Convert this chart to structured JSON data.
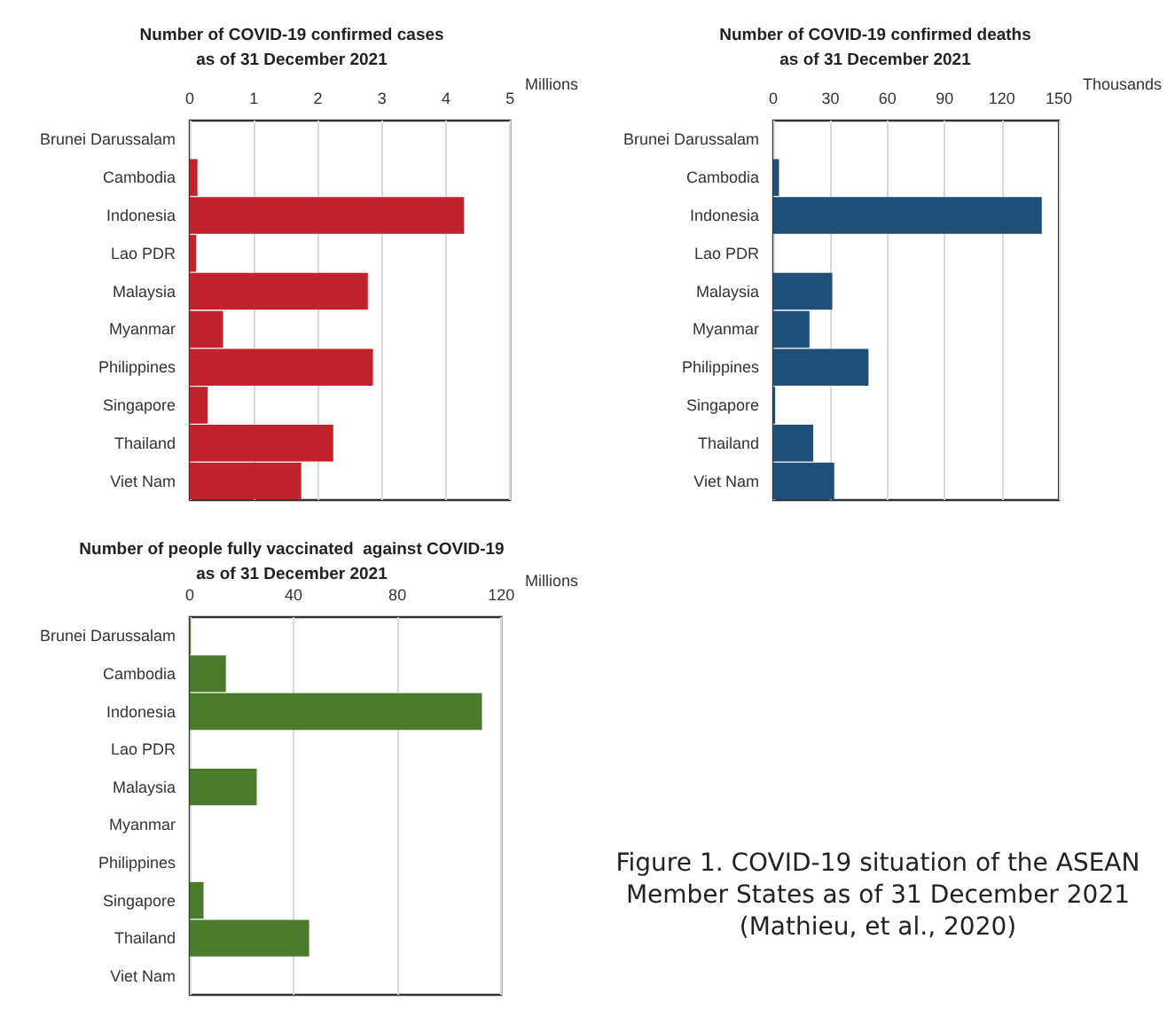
{
  "chart_data": [
    {
      "type": "bar",
      "orientation": "horizontal",
      "title": "Number of COVID-19 confirmed cases\nas of 31 December 2021",
      "xlabel": "Millions",
      "categories": [
        "Brunei Darussalam",
        "Cambodia",
        "Indonesia",
        "Lao PDR",
        "Malaysia",
        "Myanmar",
        "Philippines",
        "Singapore",
        "Thailand",
        "Viet Nam"
      ],
      "values": [
        0,
        0.12,
        4.28,
        0.1,
        2.78,
        0.52,
        2.86,
        0.28,
        2.24,
        1.74
      ],
      "color": "#c0232b",
      "xlim": [
        0,
        5
      ],
      "xticks": [
        0,
        1,
        2,
        3,
        4,
        5
      ],
      "grid": "x"
    },
    {
      "type": "bar",
      "orientation": "horizontal",
      "title": "Number of COVID-19 confirmed deaths\nas of 31 December 2021",
      "xlabel": "Thousands",
      "categories": [
        "Brunei Darussalam",
        "Cambodia",
        "Indonesia",
        "Lao PDR",
        "Malaysia",
        "Myanmar",
        "Philippines",
        "Singapore",
        "Thailand",
        "Viet Nam"
      ],
      "values": [
        0,
        3,
        141,
        0,
        31,
        19,
        50,
        1,
        21,
        32
      ],
      "color": "#1f4e79",
      "xlim": [
        0,
        150
      ],
      "xticks": [
        0,
        30,
        60,
        90,
        120,
        150
      ],
      "grid": "x"
    },
    {
      "type": "bar",
      "orientation": "horizontal",
      "title": "Number of people fully vaccinated  against COVID-19\nas of 31 December 2021",
      "xlabel": "Millions",
      "categories": [
        "Brunei Darussalam",
        "Cambodia",
        "Indonesia",
        "Lao PDR",
        "Malaysia",
        "Myanmar",
        "Philippines",
        "Singapore",
        "Thailand",
        "Viet Nam"
      ],
      "values": [
        0.3,
        13.9,
        112.6,
        null,
        25.8,
        null,
        null,
        5.3,
        46,
        null
      ],
      "color": "#4a7a2c",
      "xlim": [
        0,
        120
      ],
      "xticks": [
        0,
        40,
        80,
        120
      ],
      "grid": "x",
      "annotations": [
        "Figure 1. COVID-19 situation of the ASEAN Member States as of 31 December 2021 (Mathieu, et al., 2020)"
      ]
    }
  ]
}
